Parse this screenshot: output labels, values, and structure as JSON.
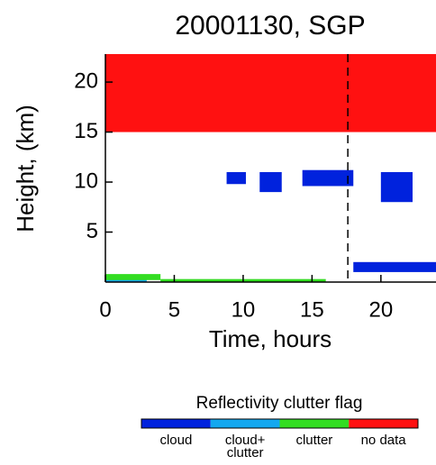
{
  "chart_data": {
    "type": "mask",
    "title": "20001130, SGP",
    "x_label": "Time, hours",
    "y_label": "Height, (km)",
    "xlim": [
      0,
      24
    ],
    "ylim": [
      0,
      22.8
    ],
    "xticks": [
      0,
      5,
      10,
      15,
      20
    ],
    "yticks": [
      5,
      10,
      15,
      20
    ],
    "vline": 17.6,
    "legend_title": "Reflectivity clutter flag",
    "series": [
      {
        "name": "cloud",
        "color": "#0022dd",
        "patches": [
          [
            8.8,
            10.2,
            9.8,
            11
          ],
          [
            11.2,
            12.8,
            9,
            11
          ],
          [
            14.3,
            18,
            9.6,
            11.2
          ],
          [
            20,
            22.3,
            8,
            11
          ],
          [
            18,
            24,
            1,
            2
          ]
        ]
      },
      {
        "name": "cloud+ clutter",
        "color": "#14a8f0",
        "patches": [
          [
            0,
            3,
            0,
            0.3
          ]
        ]
      },
      {
        "name": "clutter",
        "color": "#33dd22",
        "patches": [
          [
            0,
            4,
            0.2,
            0.8
          ],
          [
            4,
            16,
            0,
            0.3
          ]
        ]
      },
      {
        "name": "no data",
        "color": "#ff1111",
        "patches": [
          [
            0,
            24,
            15,
            22.8
          ]
        ]
      }
    ]
  }
}
